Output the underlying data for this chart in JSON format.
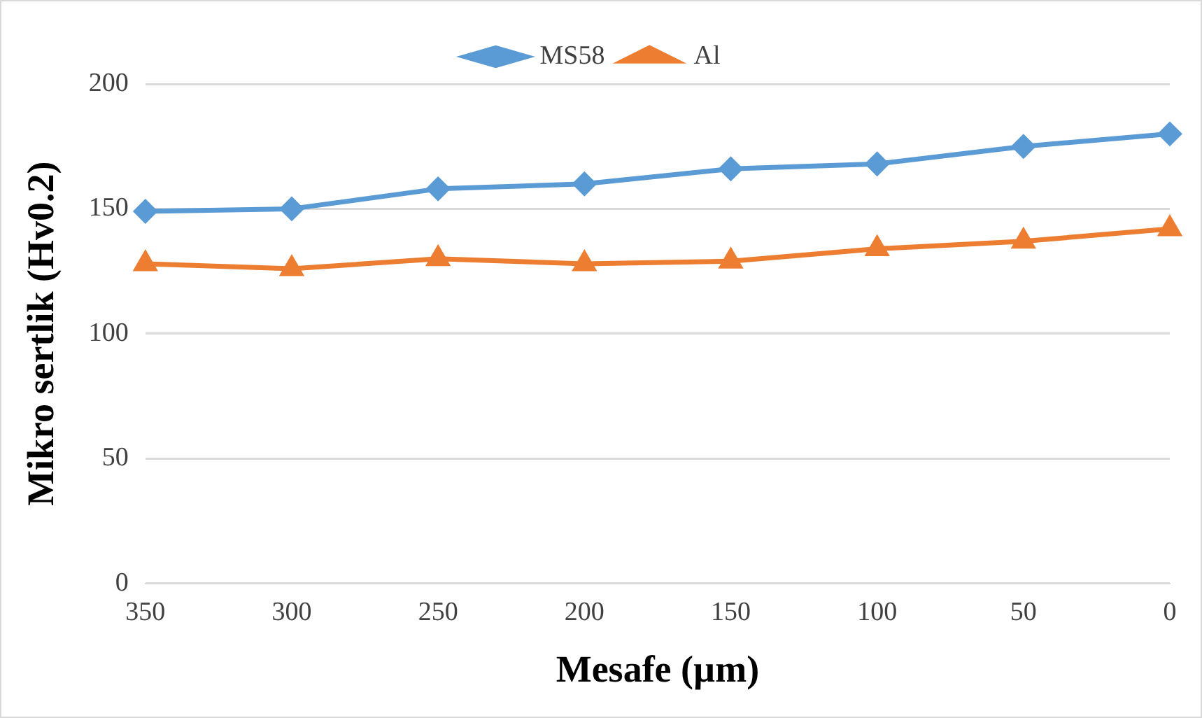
{
  "chart_data": {
    "type": "line",
    "xlabel": "Mesafe (µm)",
    "ylabel": "Mikro sertlik (Hv0.2)",
    "categories": [
      "350",
      "300",
      "250",
      "200",
      "150",
      "100",
      "50",
      "0"
    ],
    "series": [
      {
        "name": "MS58",
        "color": "#5b9bd5",
        "marker": "diamond",
        "values": [
          149,
          150,
          158,
          160,
          166,
          168,
          175,
          180
        ]
      },
      {
        "name": "Al",
        "color": "#ed7d31",
        "marker": "triangle",
        "values": [
          128,
          126,
          130,
          128,
          129,
          134,
          137,
          142
        ]
      }
    ],
    "ylim": [
      0,
      200
    ],
    "yticks": [
      0,
      50,
      100,
      150,
      200
    ],
    "grid": "y",
    "legend": "top",
    "line_style": "solid"
  }
}
